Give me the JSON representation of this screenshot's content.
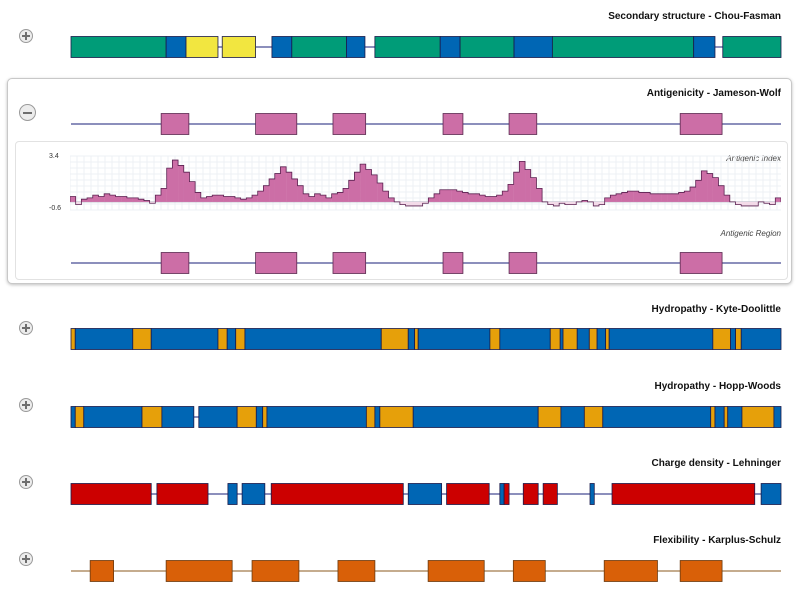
{
  "colors": {
    "green": "#009C78",
    "blue": "#0066B4",
    "yellow": "#F2E640",
    "pink": "#CC6EA6",
    "orange": "#E6A00A",
    "red": "#CC0000",
    "dark_orange": "#D96008",
    "line": "#1A1F78",
    "brown_line": "#8B5A1E",
    "border": "#1a1a4a"
  },
  "sections": {
    "chou_fasman": {
      "title": "Secondary structure - Chou-Fasman",
      "segments": [
        {
          "start": 0.0,
          "end": 0.134,
          "kind": "green"
        },
        {
          "start": 0.134,
          "end": 0.162,
          "kind": "blue"
        },
        {
          "start": 0.162,
          "end": 0.207,
          "kind": "yellow"
        },
        {
          "start": 0.213,
          "end": 0.26,
          "kind": "yellow"
        },
        {
          "start": 0.283,
          "end": 0.311,
          "kind": "blue"
        },
        {
          "start": 0.311,
          "end": 0.388,
          "kind": "green"
        },
        {
          "start": 0.388,
          "end": 0.414,
          "kind": "blue"
        },
        {
          "start": 0.428,
          "end": 0.52,
          "kind": "green"
        },
        {
          "start": 0.52,
          "end": 0.548,
          "kind": "blue"
        },
        {
          "start": 0.548,
          "end": 0.624,
          "kind": "green"
        },
        {
          "start": 0.624,
          "end": 0.678,
          "kind": "blue"
        },
        {
          "start": 0.678,
          "end": 0.877,
          "kind": "green"
        },
        {
          "start": 0.877,
          "end": 0.907,
          "kind": "blue"
        },
        {
          "start": 0.918,
          "end": 1.0,
          "kind": "green"
        }
      ]
    },
    "jameson_wolf": {
      "title": "Antigenicity - Jameson-Wolf",
      "y_max_label": "3.4",
      "y_min_label": "-0.6",
      "y_range": [
        -0.6,
        3.4
      ],
      "index_label": "Antigenic Index",
      "region_label": "Antigenic Region",
      "regions": [
        {
          "start": 0.127,
          "end": 0.166
        },
        {
          "start": 0.26,
          "end": 0.318
        },
        {
          "start": 0.369,
          "end": 0.415
        },
        {
          "start": 0.524,
          "end": 0.552
        },
        {
          "start": 0.617,
          "end": 0.656
        },
        {
          "start": 0.858,
          "end": 0.917
        }
      ],
      "profile": [
        0.4,
        -0.2,
        0.2,
        0.3,
        0.5,
        0.4,
        0.6,
        0.5,
        0.4,
        0.4,
        0.3,
        0.3,
        0.2,
        0.1,
        -0.1,
        0.5,
        1.0,
        2.5,
        3.1,
        2.7,
        2.2,
        1.5,
        0.7,
        0.3,
        0.4,
        0.5,
        0.5,
        0.4,
        0.4,
        0.3,
        0.2,
        0.3,
        0.5,
        0.8,
        1.2,
        1.7,
        2.1,
        2.6,
        2.2,
        1.7,
        1.2,
        0.6,
        0.4,
        0.6,
        0.5,
        0.3,
        0.6,
        0.7,
        1.0,
        1.6,
        2.2,
        2.8,
        2.4,
        2.0,
        1.4,
        0.8,
        0.3,
        0.0,
        -0.2,
        -0.3,
        -0.3,
        -0.3,
        -0.1,
        0.3,
        0.6,
        0.9,
        0.9,
        0.9,
        0.8,
        0.7,
        0.6,
        0.6,
        0.5,
        0.4,
        0.4,
        0.5,
        0.8,
        1.3,
        2.2,
        3.0,
        2.4,
        1.8,
        1.0,
        0.0,
        -0.2,
        -0.3,
        -0.1,
        -0.2,
        -0.2,
        0.0,
        0.1,
        0.0,
        -0.3,
        -0.2,
        0.3,
        0.5,
        0.6,
        0.7,
        0.8,
        0.8,
        0.7,
        0.7,
        0.6,
        0.6,
        0.6,
        0.6,
        0.6,
        0.7,
        0.8,
        1.1,
        1.6,
        2.3,
        2.1,
        1.8,
        1.2,
        0.5,
        0.0,
        -0.2,
        -0.3,
        -0.3,
        -0.3,
        0.0,
        -0.1,
        -0.2,
        0.3
      ]
    },
    "kyte_doolittle": {
      "title": "Hydropathy - Kyte-Doolittle",
      "segments": [
        {
          "start": 0.0,
          "end": 0.006,
          "kind": "orange"
        },
        {
          "start": 0.006,
          "end": 0.087,
          "kind": "blue"
        },
        {
          "start": 0.087,
          "end": 0.113,
          "kind": "orange"
        },
        {
          "start": 0.113,
          "end": 0.207,
          "kind": "blue"
        },
        {
          "start": 0.207,
          "end": 0.22,
          "kind": "orange"
        },
        {
          "start": 0.22,
          "end": 0.232,
          "kind": "blue"
        },
        {
          "start": 0.232,
          "end": 0.245,
          "kind": "orange"
        },
        {
          "start": 0.245,
          "end": 0.437,
          "kind": "blue"
        },
        {
          "start": 0.437,
          "end": 0.475,
          "kind": "orange"
        },
        {
          "start": 0.475,
          "end": 0.484,
          "kind": "blue"
        },
        {
          "start": 0.484,
          "end": 0.489,
          "kind": "orange"
        },
        {
          "start": 0.489,
          "end": 0.59,
          "kind": "blue"
        },
        {
          "start": 0.59,
          "end": 0.604,
          "kind": "orange"
        },
        {
          "start": 0.604,
          "end": 0.675,
          "kind": "blue"
        },
        {
          "start": 0.675,
          "end": 0.689,
          "kind": "orange"
        },
        {
          "start": 0.689,
          "end": 0.693,
          "kind": "blue"
        },
        {
          "start": 0.693,
          "end": 0.713,
          "kind": "orange"
        },
        {
          "start": 0.713,
          "end": 0.73,
          "kind": "blue"
        },
        {
          "start": 0.73,
          "end": 0.741,
          "kind": "orange"
        },
        {
          "start": 0.741,
          "end": 0.753,
          "kind": "blue"
        },
        {
          "start": 0.753,
          "end": 0.758,
          "kind": "orange"
        },
        {
          "start": 0.758,
          "end": 0.904,
          "kind": "blue"
        },
        {
          "start": 0.904,
          "end": 0.929,
          "kind": "orange"
        },
        {
          "start": 0.929,
          "end": 0.936,
          "kind": "blue"
        },
        {
          "start": 0.936,
          "end": 0.944,
          "kind": "orange"
        },
        {
          "start": 0.944,
          "end": 1.0,
          "kind": "blue"
        }
      ]
    },
    "hopp_woods": {
      "title": "Hydropathy - Hopp-Woods",
      "segments": [
        {
          "start": 0.0,
          "end": 0.006,
          "kind": "blue"
        },
        {
          "start": 0.006,
          "end": 0.018,
          "kind": "orange"
        },
        {
          "start": 0.018,
          "end": 0.1,
          "kind": "blue"
        },
        {
          "start": 0.1,
          "end": 0.128,
          "kind": "orange"
        },
        {
          "start": 0.128,
          "end": 0.173,
          "kind": "blue"
        },
        {
          "start": 0.18,
          "end": 0.234,
          "kind": "blue"
        },
        {
          "start": 0.234,
          "end": 0.261,
          "kind": "orange"
        },
        {
          "start": 0.261,
          "end": 0.27,
          "kind": "blue"
        },
        {
          "start": 0.27,
          "end": 0.276,
          "kind": "orange"
        },
        {
          "start": 0.276,
          "end": 0.416,
          "kind": "blue"
        },
        {
          "start": 0.416,
          "end": 0.428,
          "kind": "orange"
        },
        {
          "start": 0.428,
          "end": 0.435,
          "kind": "blue"
        },
        {
          "start": 0.435,
          "end": 0.482,
          "kind": "orange"
        },
        {
          "start": 0.482,
          "end": 0.658,
          "kind": "blue"
        },
        {
          "start": 0.658,
          "end": 0.69,
          "kind": "orange"
        },
        {
          "start": 0.69,
          "end": 0.723,
          "kind": "blue"
        },
        {
          "start": 0.723,
          "end": 0.749,
          "kind": "orange"
        },
        {
          "start": 0.749,
          "end": 0.901,
          "kind": "blue"
        },
        {
          "start": 0.901,
          "end": 0.907,
          "kind": "orange"
        },
        {
          "start": 0.907,
          "end": 0.92,
          "kind": "blue"
        },
        {
          "start": 0.92,
          "end": 0.925,
          "kind": "orange"
        },
        {
          "start": 0.925,
          "end": 0.945,
          "kind": "blue"
        },
        {
          "start": 0.945,
          "end": 0.99,
          "kind": "orange"
        },
        {
          "start": 0.99,
          "end": 1.0,
          "kind": "blue"
        }
      ]
    },
    "lehninger": {
      "title": "Charge density - Lehninger",
      "segments": [
        {
          "start": 0.0,
          "end": 0.113,
          "kind": "red"
        },
        {
          "start": 0.121,
          "end": 0.193,
          "kind": "red"
        },
        {
          "start": 0.221,
          "end": 0.234,
          "kind": "blue"
        },
        {
          "start": 0.241,
          "end": 0.273,
          "kind": "blue"
        },
        {
          "start": 0.282,
          "end": 0.468,
          "kind": "red"
        },
        {
          "start": 0.475,
          "end": 0.522,
          "kind": "blue"
        },
        {
          "start": 0.529,
          "end": 0.589,
          "kind": "red"
        },
        {
          "start": 0.604,
          "end": 0.61,
          "kind": "blue"
        },
        {
          "start": 0.61,
          "end": 0.617,
          "kind": "red"
        },
        {
          "start": 0.637,
          "end": 0.658,
          "kind": "red"
        },
        {
          "start": 0.665,
          "end": 0.685,
          "kind": "red"
        },
        {
          "start": 0.731,
          "end": 0.737,
          "kind": "blue"
        },
        {
          "start": 0.762,
          "end": 0.963,
          "kind": "red"
        },
        {
          "start": 0.972,
          "end": 1.0,
          "kind": "blue"
        }
      ]
    },
    "karplus_schulz": {
      "title": "Flexibility - Karplus-Schulz",
      "segments": [
        {
          "start": 0.027,
          "end": 0.06,
          "kind": "dark_orange"
        },
        {
          "start": 0.134,
          "end": 0.227,
          "kind": "dark_orange"
        },
        {
          "start": 0.255,
          "end": 0.321,
          "kind": "dark_orange"
        },
        {
          "start": 0.376,
          "end": 0.428,
          "kind": "dark_orange"
        },
        {
          "start": 0.503,
          "end": 0.582,
          "kind": "dark_orange"
        },
        {
          "start": 0.623,
          "end": 0.668,
          "kind": "dark_orange"
        },
        {
          "start": 0.751,
          "end": 0.826,
          "kind": "dark_orange"
        },
        {
          "start": 0.858,
          "end": 0.917,
          "kind": "dark_orange"
        }
      ]
    }
  }
}
